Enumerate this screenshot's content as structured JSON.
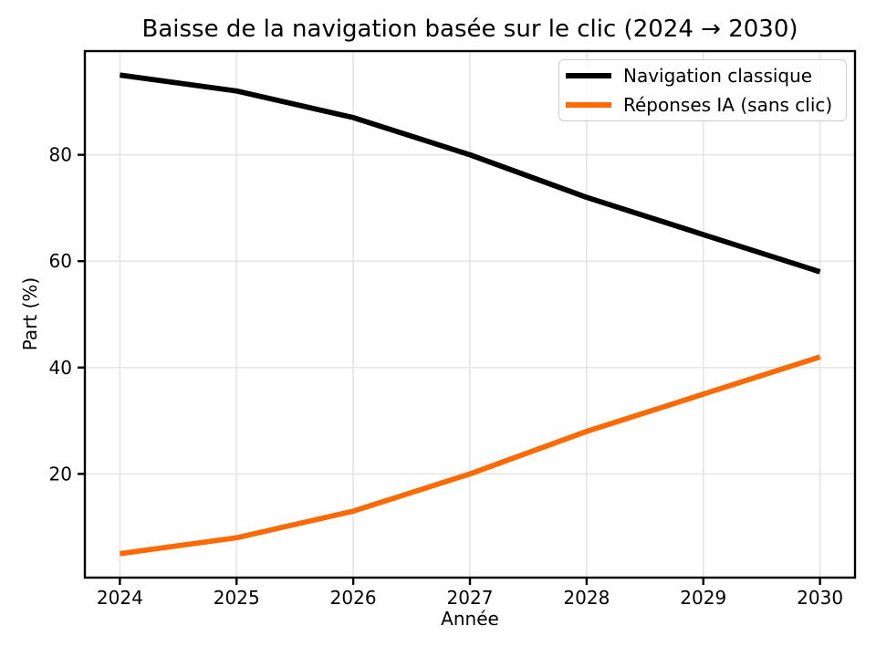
{
  "chart_data": {
    "type": "line",
    "title": "Baisse de la navigation basée sur le clic (2024 → 2030)",
    "xlabel": "Année",
    "ylabel": "Part (%)",
    "x": [
      2024,
      2025,
      2026,
      2027,
      2028,
      2029,
      2030
    ],
    "x_ticks": [
      2024,
      2025,
      2026,
      2027,
      2028,
      2029,
      2030
    ],
    "y_ticks": [
      20,
      40,
      60,
      80
    ],
    "xlim": [
      2023.7,
      2030.3
    ],
    "ylim": [
      0.5,
      99.5
    ],
    "grid": true,
    "legend_position": "top-right",
    "series": [
      {
        "name": "Navigation classique",
        "color": "#000000",
        "values": [
          95,
          92,
          87,
          80,
          72,
          65,
          58
        ]
      },
      {
        "name": "Réponses IA (sans clic)",
        "color": "#fd6a02",
        "values": [
          5,
          8,
          13,
          20,
          28,
          35,
          42
        ]
      }
    ],
    "colors": {
      "grid": "#e7e7e7",
      "axis": "#000000",
      "legend_border": "#cccccc",
      "background": "#ffffff"
    }
  }
}
